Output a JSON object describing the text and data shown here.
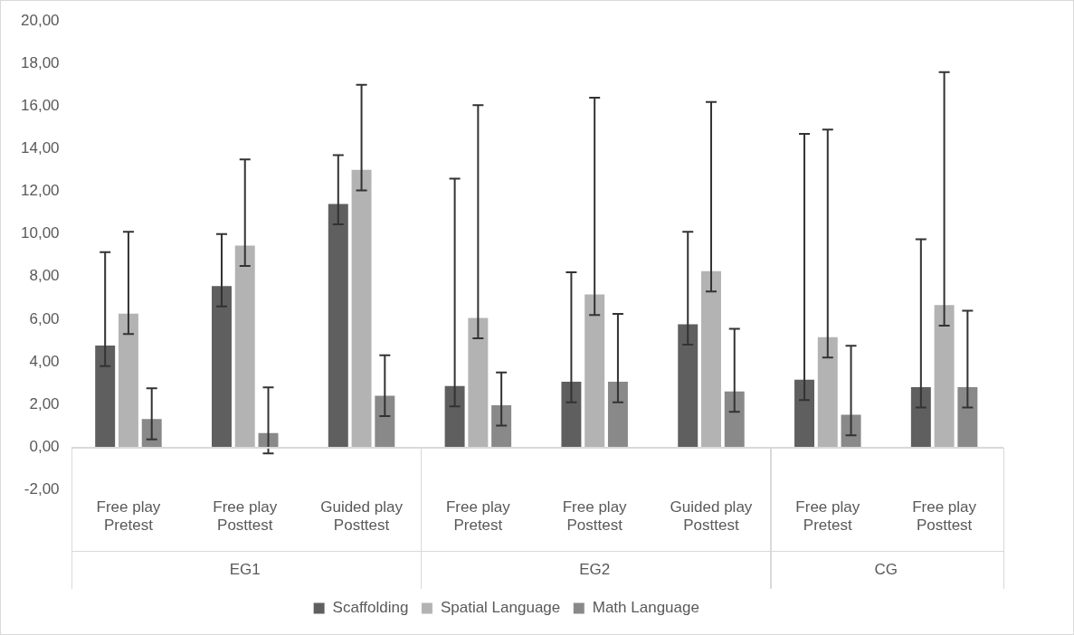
{
  "chart_data": {
    "type": "bar",
    "categories": [
      "Free play Pretest",
      "Free play Posttest",
      "Guided play Posttest",
      "Free play Pretest",
      "Free play Posttest",
      "Guided play Posttest",
      "Free play Pretest",
      "Free play Posttest"
    ],
    "series": [
      {
        "name": "Scaffolding",
        "color": "#5f5f5f",
        "values": [
          4.8,
          7.6,
          11.45,
          2.9,
          3.1,
          5.8,
          3.2,
          2.85
        ],
        "errors": [
          [
            3.8,
            9.15
          ],
          [
            6.6,
            10.0
          ],
          [
            10.45,
            13.7
          ],
          [
            1.9,
            12.6
          ],
          [
            2.1,
            8.2
          ],
          [
            4.8,
            10.1
          ],
          [
            2.2,
            14.7
          ],
          [
            1.85,
            9.75
          ]
        ]
      },
      {
        "name": "Spatial Language",
        "color": "#b3b3b3",
        "values": [
          6.3,
          9.5,
          13.05,
          6.1,
          7.2,
          8.3,
          5.2,
          6.7
        ],
        "errors": [
          [
            5.3,
            10.1
          ],
          [
            8.5,
            13.5
          ],
          [
            12.05,
            17.0
          ],
          [
            5.1,
            16.05
          ],
          [
            6.2,
            16.4
          ],
          [
            7.3,
            16.2
          ],
          [
            4.2,
            14.9
          ],
          [
            5.7,
            17.6
          ]
        ]
      },
      {
        "name": "Math Language",
        "color": "#898989",
        "values": [
          1.35,
          0.7,
          2.45,
          2.0,
          3.1,
          2.65,
          1.55,
          2.85
        ],
        "errors": [
          [
            0.35,
            2.75
          ],
          [
            -0.3,
            2.8
          ],
          [
            1.45,
            4.3
          ],
          [
            1.0,
            3.5
          ],
          [
            2.1,
            6.25
          ],
          [
            1.65,
            5.55
          ],
          [
            0.55,
            4.75
          ],
          [
            1.85,
            6.4
          ]
        ]
      }
    ],
    "ylim": [
      -2,
      20
    ],
    "yticks": [
      {
        "value": -2,
        "label": "-2,00"
      },
      {
        "value": 0,
        "label": "0,00"
      },
      {
        "value": 2,
        "label": "2,00"
      },
      {
        "value": 4,
        "label": "4,00"
      },
      {
        "value": 6,
        "label": "6,00"
      },
      {
        "value": 8,
        "label": "8,00"
      },
      {
        "value": 10,
        "label": "10,00"
      },
      {
        "value": 12,
        "label": "12,00"
      },
      {
        "value": 14,
        "label": "14,00"
      },
      {
        "value": 16,
        "label": "16,00"
      },
      {
        "value": 18,
        "label": "18,00"
      },
      {
        "value": 20,
        "label": "20,00"
      }
    ],
    "annotations": [
      "EG1",
      "EG2",
      "CG"
    ],
    "grid": false,
    "legend": "bottom"
  }
}
